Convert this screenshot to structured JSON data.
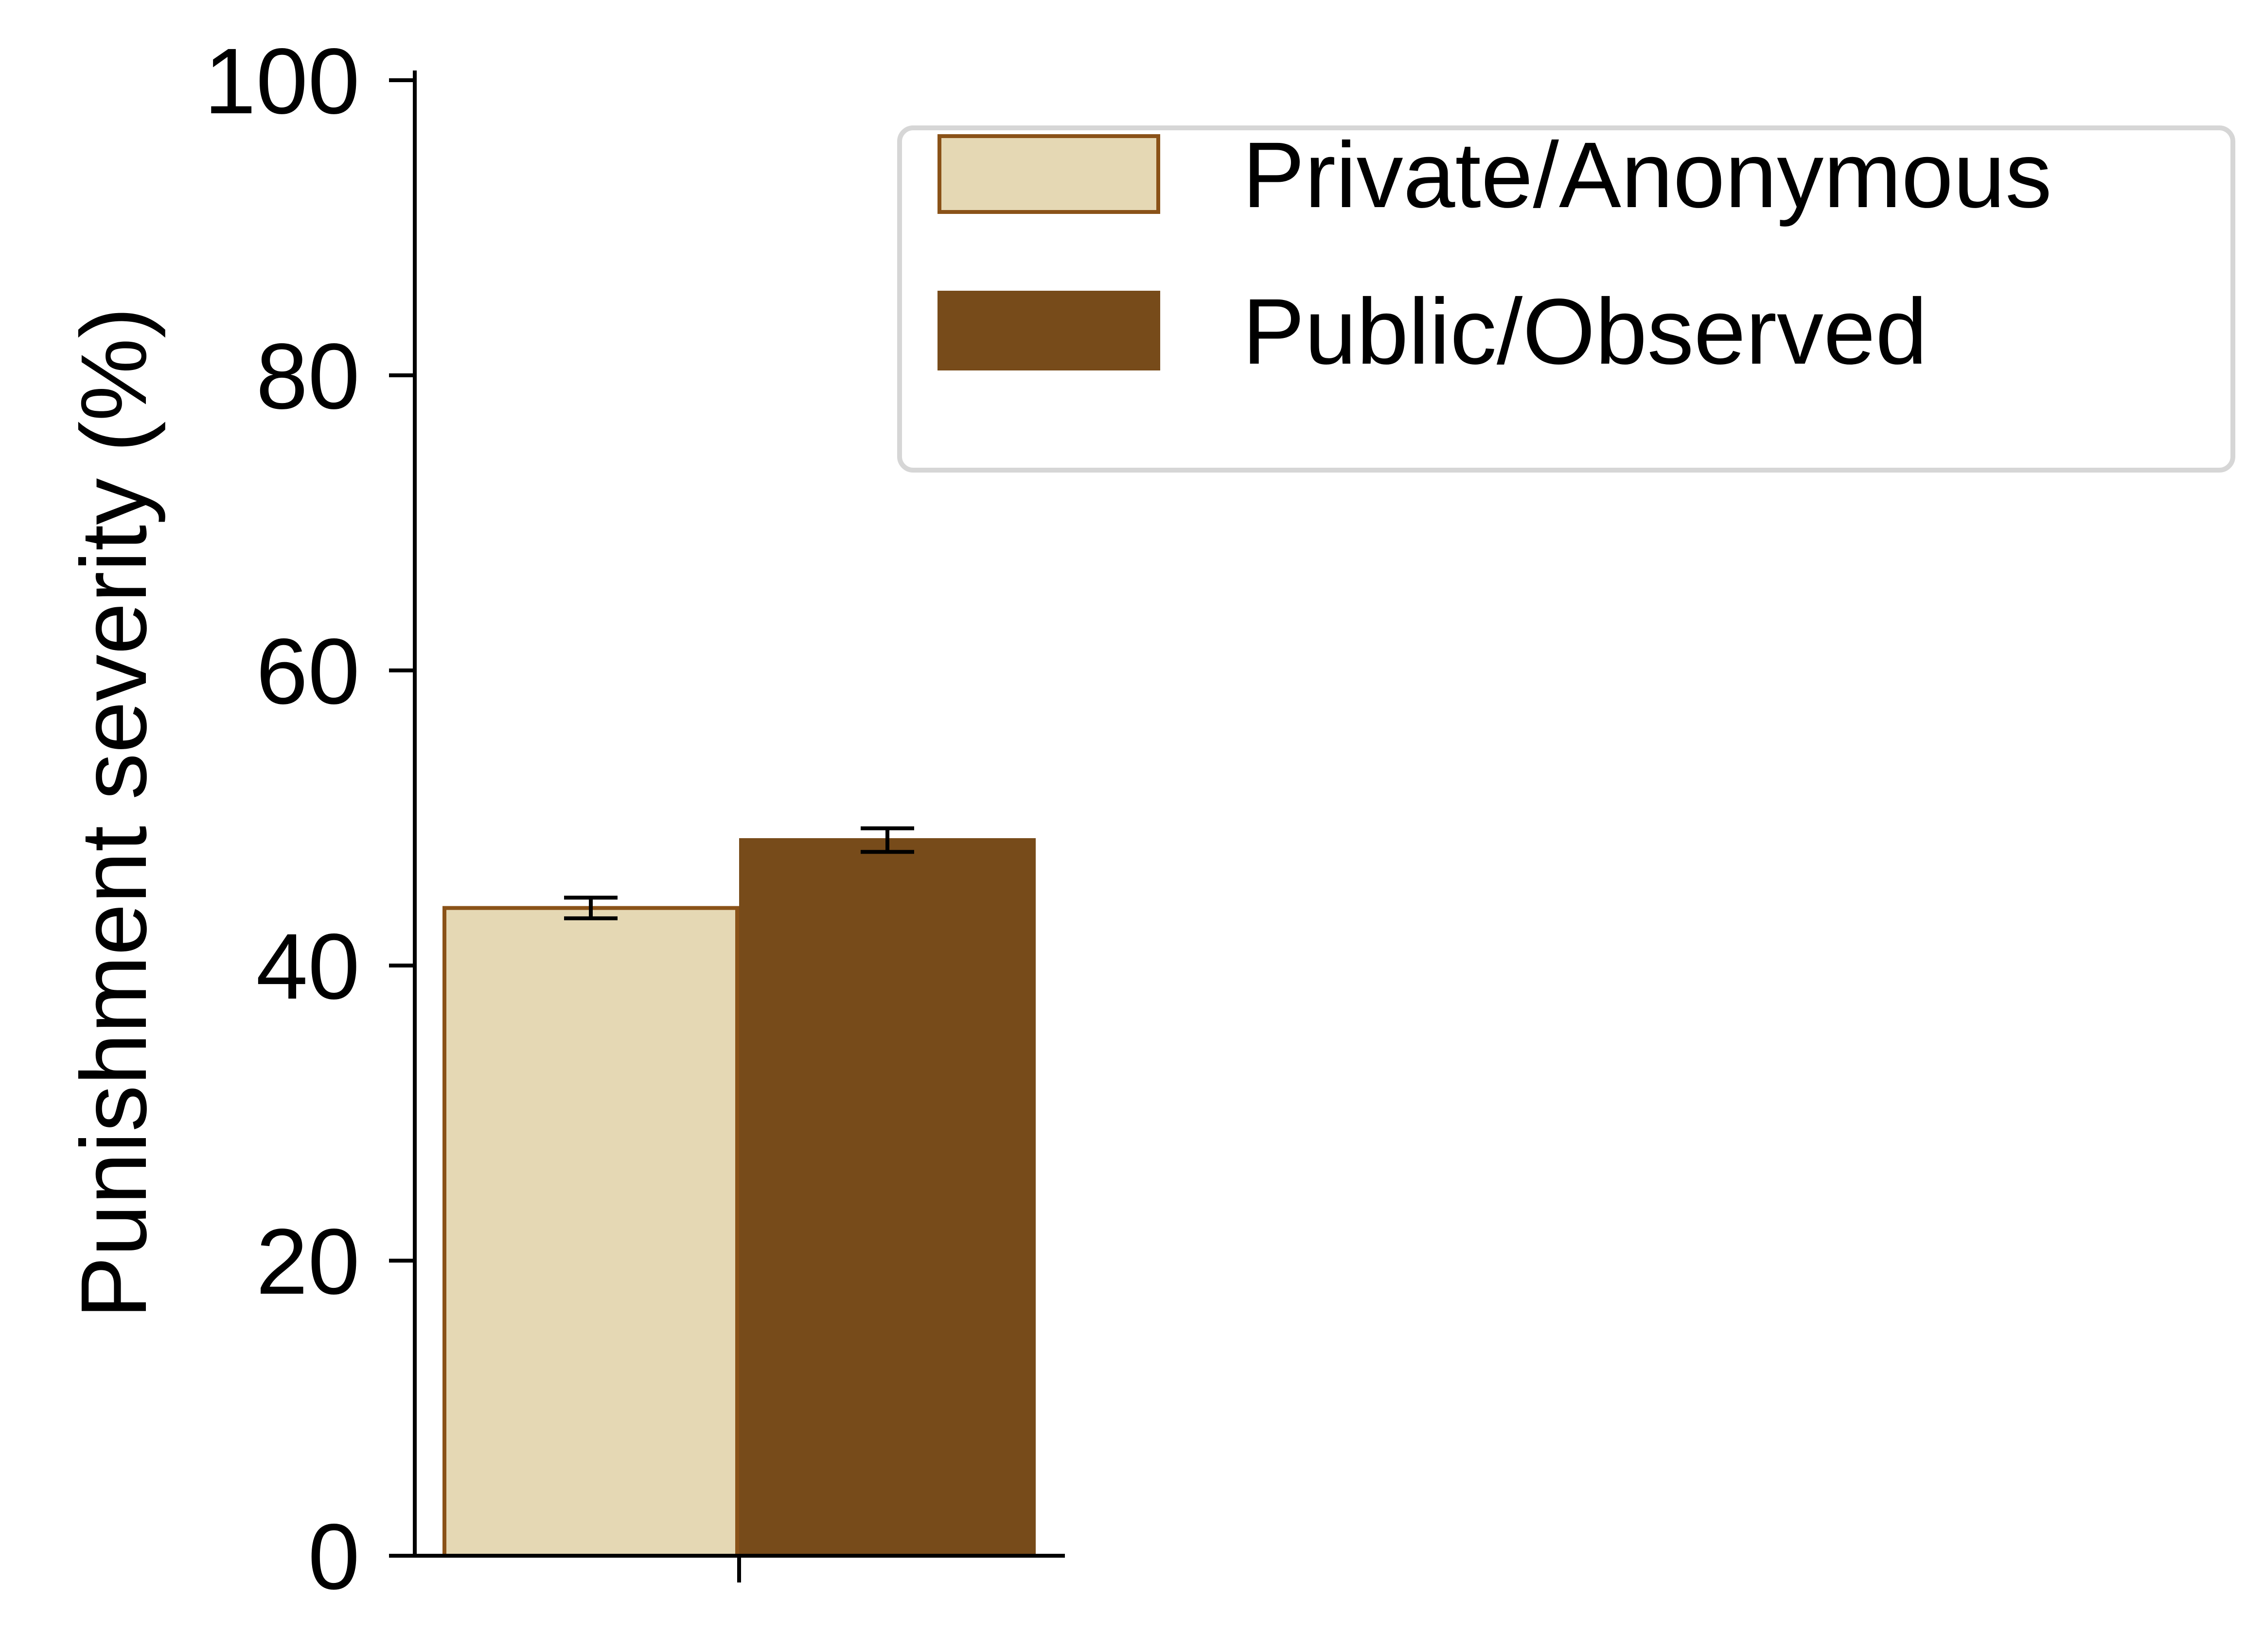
{
  "chart_data": {
    "type": "bar",
    "title": "",
    "xlabel": "",
    "ylabel": "Punishment severity (%)",
    "ylim": [
      0,
      100
    ],
    "yticks": [
      "0",
      "20",
      "40",
      "60",
      "80",
      "100"
    ],
    "categories": [
      ""
    ],
    "series": [
      {
        "name": "Private/Anonymous",
        "values": [
          43.9
        ],
        "errors": [
          0.7
        ],
        "fill": "#e5d8b4",
        "edge": "#8a5218"
      },
      {
        "name": "Public/Observed",
        "values": [
          48.5
        ],
        "errors": [
          0.8
        ],
        "fill": "#774b1a",
        "edge": "#774b1a"
      }
    ],
    "legend": {
      "position": "top-right"
    },
    "grid": false
  }
}
